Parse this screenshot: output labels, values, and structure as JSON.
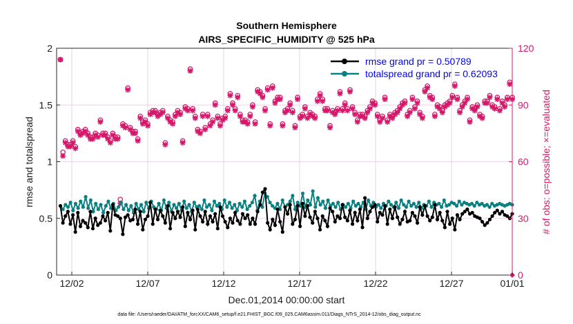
{
  "chart_data": {
    "type": "line",
    "title": "Southern Hemisphere",
    "subtitle": "AIRS_SPECIFIC_HUMIDITY @ 525 hPa",
    "xlabel": "Dec.01,2014 00:00:00 start",
    "ylabel": "rmse and totalspread",
    "ylabel_right": "# of obs: o=possible; ×=evaluated",
    "xlim": [
      0,
      60
    ],
    "ylim": [
      0,
      2
    ],
    "ylim_right": [
      0,
      120
    ],
    "xticks": [
      {
        "x": 2,
        "label": "12/02"
      },
      {
        "x": 12,
        "label": "12/07"
      },
      {
        "x": 22,
        "label": "12/12"
      },
      {
        "x": 32,
        "label": "12/17"
      },
      {
        "x": 42,
        "label": "12/22"
      },
      {
        "x": 52,
        "label": "12/27"
      },
      {
        "x": 60,
        "label": "01/01"
      }
    ],
    "yticks": [
      {
        "v": 0,
        "label": "0"
      },
      {
        "v": 0.5,
        "label": "0.5"
      },
      {
        "v": 1,
        "label": "1"
      },
      {
        "v": 1.5,
        "label": "1.5"
      },
      {
        "v": 2,
        "label": "2"
      }
    ],
    "yticks_right": [
      {
        "v": 0,
        "label": "0"
      },
      {
        "v": 30,
        "label": "30"
      },
      {
        "v": 60,
        "label": "60"
      },
      {
        "v": 90,
        "label": "90"
      },
      {
        "v": 120,
        "label": "120"
      }
    ],
    "grid": true,
    "legend": "top-right",
    "colors": {
      "rmse": "#000000",
      "spread": "#0a8080",
      "obs": "#d6186a",
      "legend_text": "#0000ff",
      "grid": "#e3c6dc"
    },
    "series": [
      {
        "name": "rmse",
        "legend": "rmse grand pr = 0.50789",
        "values": [
          0.61,
          0.46,
          0.52,
          0.56,
          0.45,
          0.53,
          0.38,
          0.55,
          0.43,
          0.48,
          0.46,
          0.42,
          0.56,
          0.41,
          0.5,
          0.44,
          0.46,
          0.52,
          0.48,
          0.55,
          0.39,
          0.62,
          0.53,
          0.52,
          0.5,
          0.36,
          0.51,
          0.53,
          0.48,
          0.49,
          0.58,
          0.45,
          0.56,
          0.4,
          0.49,
          0.52,
          0.64,
          0.45,
          0.58,
          0.49,
          0.57,
          0.52,
          0.46,
          0.61,
          0.41,
          0.55,
          0.5,
          0.56,
          0.51,
          0.6,
          0.43,
          0.55,
          0.49,
          0.57,
          0.4,
          0.58,
          0.52,
          0.47,
          0.56,
          0.45,
          0.52,
          0.47,
          0.54,
          0.41,
          0.6,
          0.52,
          0.47,
          0.42,
          0.5,
          0.46,
          0.55,
          0.48,
          0.45,
          0.54,
          0.5,
          0.53,
          0.45,
          0.5,
          0.45,
          0.56,
          0.62,
          0.73,
          0.76,
          0.46,
          0.4,
          0.49,
          0.44,
          0.58,
          0.47,
          0.38,
          0.6,
          0.54,
          0.62,
          0.45,
          0.49,
          0.61,
          0.43,
          0.63,
          0.52,
          0.61,
          0.51,
          0.46,
          0.56,
          0.5,
          0.4,
          0.52,
          0.48,
          0.43,
          0.59,
          0.56,
          0.47,
          0.52,
          0.5,
          0.62,
          0.51,
          0.48,
          0.57,
          0.45,
          0.55,
          0.48,
          0.58,
          0.42,
          0.68,
          0.5,
          0.56,
          0.6,
          0.62,
          0.47,
          0.55,
          0.53,
          0.61,
          0.45,
          0.58,
          0.5,
          0.6,
          0.51,
          0.45,
          0.49,
          0.56,
          0.47,
          0.48,
          0.55,
          0.52,
          0.46,
          0.6,
          0.53,
          0.61,
          0.52,
          0.48,
          0.51,
          0.62,
          0.49,
          0.55,
          0.48,
          0.42,
          0.56,
          0.45,
          0.5,
          0.4,
          0.53,
          0.49,
          0.54,
          0.56,
          0.58,
          0.54,
          0.55,
          0.52,
          0.51,
          0.5,
          0.47,
          0.44,
          0.46,
          0.49,
          0.52,
          0.55,
          0.57,
          0.54,
          0.56,
          0.53,
          0.52,
          0.5,
          0.54
        ]
      },
      {
        "name": "totalspread",
        "legend": "totalspread grand pr = 0.62093",
        "values": [
          0.61,
          0.58,
          0.62,
          0.6,
          0.64,
          0.57,
          0.63,
          0.59,
          0.65,
          0.6,
          0.69,
          0.59,
          0.66,
          0.56,
          0.63,
          0.58,
          0.62,
          0.55,
          0.61,
          0.65,
          0.59,
          0.63,
          0.57,
          0.6,
          0.64,
          0.58,
          0.62,
          0.57,
          0.61,
          0.55,
          0.63,
          0.58,
          0.62,
          0.56,
          0.64,
          0.59,
          0.65,
          0.6,
          0.58,
          0.63,
          0.57,
          0.66,
          0.59,
          0.64,
          0.56,
          0.62,
          0.59,
          0.63,
          0.57,
          0.65,
          0.59,
          0.62,
          0.56,
          0.64,
          0.6,
          0.61,
          0.58,
          0.66,
          0.6,
          0.62,
          0.57,
          0.65,
          0.61,
          0.63,
          0.58,
          0.66,
          0.6,
          0.64,
          0.59,
          0.62,
          0.57,
          0.63,
          0.6,
          0.65,
          0.58,
          0.61,
          0.64,
          0.7,
          0.57,
          0.65,
          0.6,
          0.72,
          0.69,
          0.64,
          0.61,
          0.59,
          0.63,
          0.58,
          0.66,
          0.6,
          0.62,
          0.65,
          0.7,
          0.58,
          0.64,
          0.61,
          0.72,
          0.6,
          0.66,
          0.62,
          0.74,
          0.6,
          0.68,
          0.62,
          0.65,
          0.59,
          0.66,
          0.61,
          0.63,
          0.6,
          0.64,
          0.58,
          0.62,
          0.6,
          0.63,
          0.59,
          0.65,
          0.61,
          0.63,
          0.6,
          0.64,
          0.58,
          0.66,
          0.61,
          0.64,
          0.6,
          0.62,
          0.59,
          0.63,
          0.61,
          0.65,
          0.62,
          0.6,
          0.64,
          0.59,
          0.66,
          0.62,
          0.6,
          0.65,
          0.61,
          0.63,
          0.6,
          0.64,
          0.59,
          0.62,
          0.61,
          0.65,
          0.6,
          0.64,
          0.62,
          0.63,
          0.6,
          0.66,
          0.61,
          0.62,
          0.64,
          0.63,
          0.61,
          0.65,
          0.62,
          0.64,
          0.63,
          0.62,
          0.63,
          0.61,
          0.64,
          0.62,
          0.63,
          0.61,
          0.62,
          0.6,
          0.63,
          0.61,
          0.62,
          0.63,
          0.62,
          0.61,
          0.62,
          0.63,
          0.62
        ]
      },
      {
        "name": "obs_possible",
        "axis": "right",
        "marker": "o",
        "values": [
          114,
          65,
          71,
          69,
          69,
          71,
          68,
          77,
          75,
          76,
          77,
          75,
          73,
          73,
          75,
          74,
          82,
          75,
          75,
          73,
          71,
          75,
          73,
          73,
          40,
          80,
          79,
          99,
          78,
          76,
          76,
          72,
          84,
          81,
          82,
          80,
          86,
          87,
          87,
          85,
          86,
          87,
          70,
          84,
          82,
          81,
          85,
          87,
          86,
          71,
          89,
          88,
          109,
          88,
          84,
          77,
          76,
          85,
          78,
          85,
          80,
          82,
          91,
          84,
          80,
          83,
          84,
          88,
          96,
          91,
          88,
          95,
          85,
          82,
          82,
          81,
          85,
          90,
          81,
          98,
          97,
          95,
          88,
          99,
          80,
          100,
          92,
          94,
          94,
          80,
          87,
          88,
          91,
          87,
          79,
          94,
          84,
          85,
          89,
          84,
          86,
          85,
          84,
          93,
          96,
          93,
          88,
          88,
          79,
          87,
          86,
          88,
          97,
          88,
          91,
          88,
          98,
          89,
          86,
          82,
          85,
          85,
          84,
          87,
          89,
          92,
          91,
          85,
          82,
          84,
          94,
          82,
          85,
          84,
          86,
          87,
          89,
          91,
          92,
          85,
          87,
          94,
          89,
          92,
          86,
          84,
          98,
          100,
          95,
          94,
          85,
          90,
          89,
          87,
          90,
          91,
          92,
          95,
          101,
          94,
          87,
          90,
          92,
          94,
          82,
          89,
          88,
          90,
          85,
          84,
          92,
          92,
          95,
          90,
          89,
          94,
          88,
          92,
          90,
          94,
          102,
          94
        ]
      },
      {
        "name": "obs_evaluated",
        "axis": "right",
        "marker": "x",
        "values": [
          114,
          63,
          70,
          68,
          68,
          70,
          67,
          76,
          74,
          75,
          76,
          74,
          72,
          72,
          74,
          73,
          81,
          74,
          74,
          72,
          70,
          74,
          72,
          72,
          38,
          79,
          78,
          98,
          77,
          75,
          75,
          71,
          83,
          80,
          81,
          79,
          85,
          86,
          86,
          84,
          85,
          86,
          69,
          83,
          81,
          80,
          84,
          86,
          85,
          70,
          88,
          87,
          108,
          87,
          83,
          76,
          75,
          84,
          77,
          84,
          79,
          81,
          90,
          83,
          79,
          82,
          83,
          87,
          95,
          90,
          87,
          94,
          84,
          81,
          81,
          80,
          84,
          89,
          80,
          97,
          96,
          94,
          87,
          98,
          79,
          99,
          91,
          93,
          93,
          79,
          86,
          87,
          90,
          86,
          78,
          93,
          83,
          84,
          88,
          83,
          85,
          84,
          83,
          92,
          95,
          92,
          87,
          87,
          78,
          86,
          85,
          87,
          96,
          87,
          90,
          87,
          97,
          88,
          85,
          81,
          84,
          84,
          83,
          86,
          88,
          91,
          90,
          84,
          81,
          83,
          93,
          81,
          84,
          83,
          85,
          86,
          88,
          90,
          91,
          84,
          86,
          93,
          88,
          91,
          85,
          83,
          97,
          99,
          94,
          93,
          84,
          89,
          88,
          86,
          89,
          90,
          91,
          94,
          100,
          93,
          86,
          89,
          91,
          93,
          81,
          88,
          87,
          89,
          84,
          83,
          91,
          91,
          94,
          89,
          88,
          93,
          87,
          91,
          89,
          93,
          101,
          93
        ]
      }
    ],
    "footer": "data file: /Users/raeder/DAI/ATM_forcXX/CAM6_setup/f.e21.FHIST_BGC.f09_025.CAM6assim.011/Diags_NTrS_2014-12/obs_diag_output.nc"
  }
}
